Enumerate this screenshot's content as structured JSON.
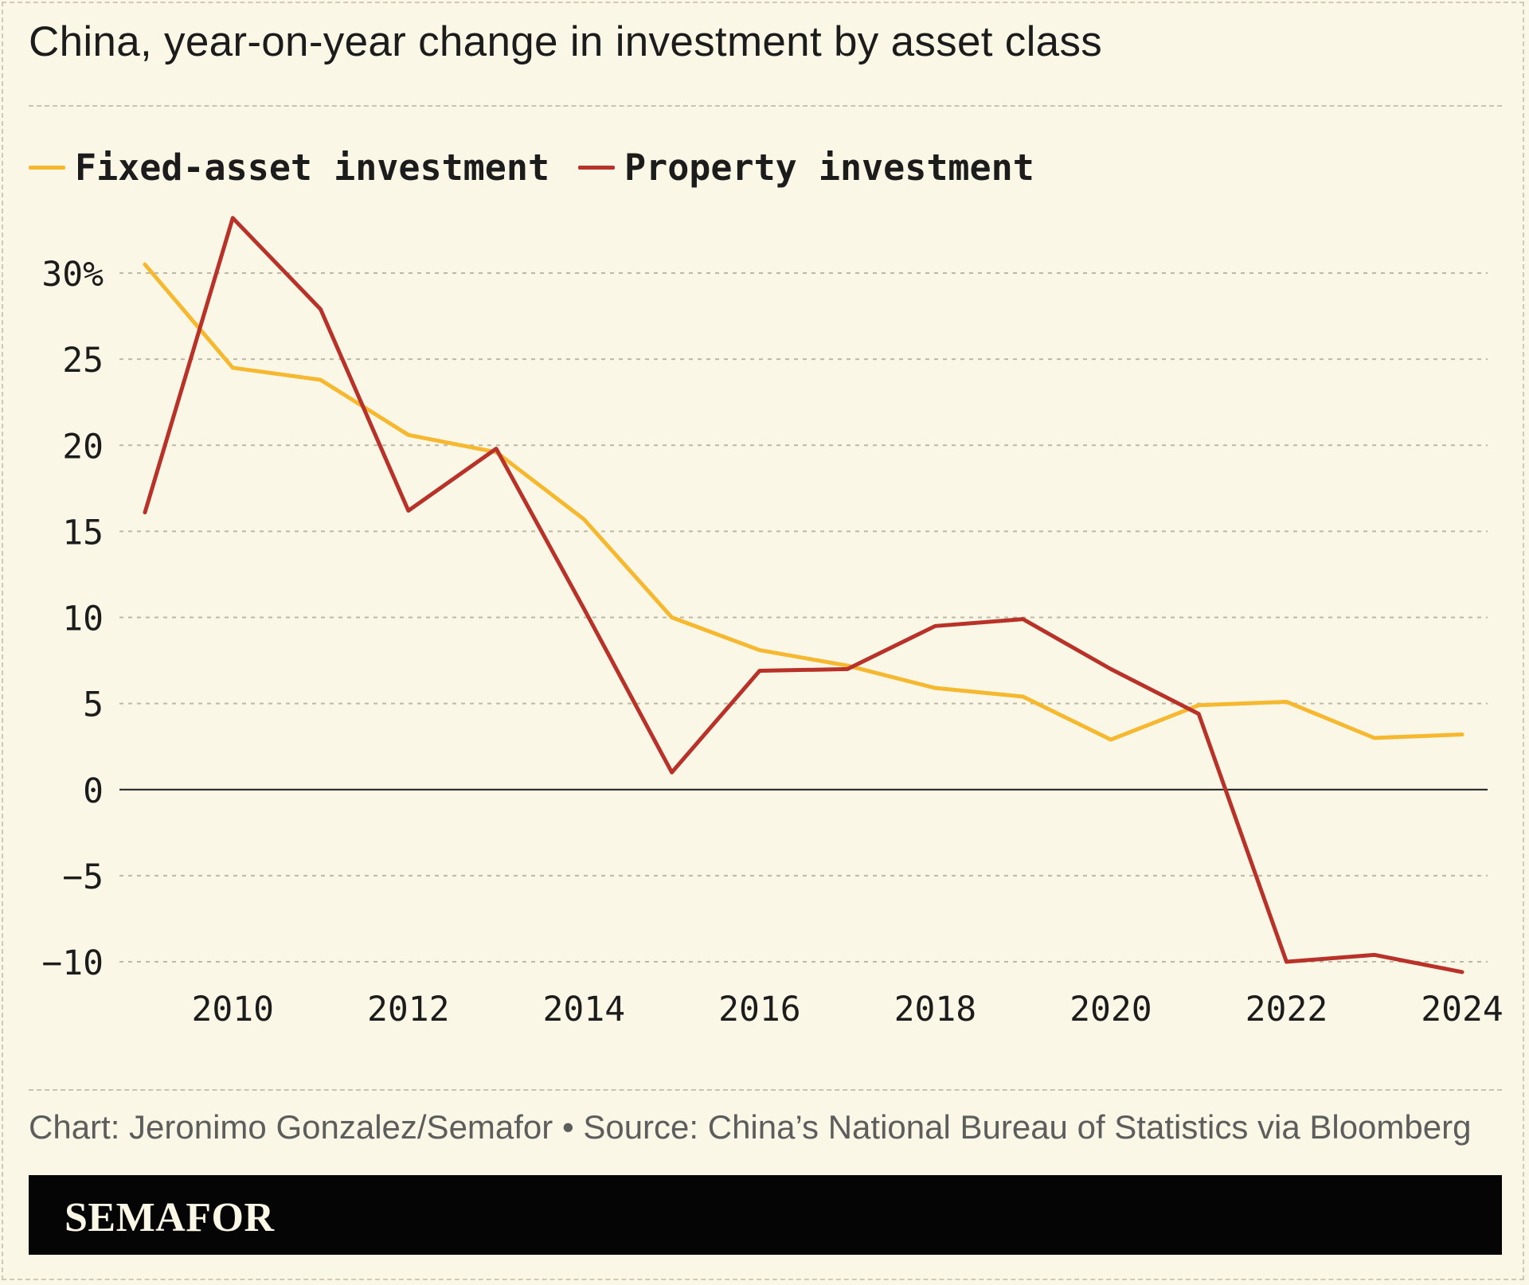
{
  "header": {
    "title": "China, year-on-year change in investment by asset class"
  },
  "legend": {
    "items": [
      {
        "label": "Fixed-asset investment",
        "color": "#f5b82e"
      },
      {
        "label": "Property investment",
        "color": "#b8322a"
      }
    ]
  },
  "footer": {
    "credit": "Chart: Jeronimo Gonzalez/Semafor • Source: China’s National Bureau of Statistics via Bloomberg",
    "brand": "SEMAFOR"
  },
  "chart_data": {
    "type": "line",
    "title": "China, year-on-year change in investment by asset class",
    "xlabel": "",
    "ylabel": "",
    "x": [
      2009,
      2010,
      2011,
      2012,
      2013,
      2014,
      2015,
      2016,
      2017,
      2018,
      2019,
      2020,
      2021,
      2022,
      2023,
      2024
    ],
    "xlim": [
      2009,
      2024
    ],
    "ylim": [
      -11,
      34
    ],
    "y_ticks": [
      30,
      25,
      20,
      15,
      10,
      5,
      0,
      -5,
      -10
    ],
    "y_tick_labels": [
      "30%",
      "25",
      "20",
      "15",
      "10",
      "5",
      "0",
      "−5",
      "−10"
    ],
    "x_ticks": [
      2010,
      2012,
      2014,
      2016,
      2018,
      2020,
      2022,
      2024
    ],
    "x_tick_labels": [
      "2010",
      "2012",
      "2014",
      "2016",
      "2018",
      "2020",
      "2022",
      "2024"
    ],
    "grid": true,
    "legend_position": "top-left",
    "series": [
      {
        "name": "Fixed-asset investment",
        "color": "#f5b82e",
        "values": [
          30.5,
          24.5,
          23.8,
          20.6,
          19.6,
          15.7,
          10.0,
          8.1,
          7.2,
          5.9,
          5.4,
          2.9,
          4.9,
          5.1,
          3.0,
          3.2
        ]
      },
      {
        "name": "Property investment",
        "color": "#b8322a",
        "values": [
          16.1,
          33.2,
          27.9,
          16.2,
          19.8,
          10.5,
          1.0,
          6.9,
          7.0,
          9.5,
          9.9,
          7.0,
          4.4,
          -10.0,
          -9.6,
          -10.6
        ]
      }
    ]
  }
}
